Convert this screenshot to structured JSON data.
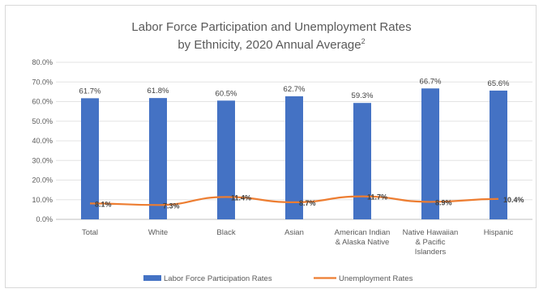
{
  "chart_data": {
    "type": "bar",
    "title_line1": "Labor Force Participation and Unemployment Rates",
    "title_line2": "by Ethnicity, 2020 Annual Average",
    "title_superscript": "2",
    "categories": [
      [
        "Total"
      ],
      [
        "White"
      ],
      [
        "Black"
      ],
      [
        "Asian"
      ],
      [
        "American Indian",
        "& Alaska Native"
      ],
      [
        "Native Hawaiian",
        "& Pacific",
        "Islanders"
      ],
      [
        "Hispanic"
      ]
    ],
    "ylim": [
      0,
      80
    ],
    "y_ticks": [
      "0.0%",
      "10.0%",
      "20.0%",
      "30.0%",
      "40.0%",
      "50.0%",
      "60.0%",
      "70.0%",
      "80.0%"
    ],
    "grid": true,
    "legend_position": "bottom",
    "series": [
      {
        "name": "Labor Force Participation Rates",
        "kind": "bar",
        "color": "#4472c4",
        "values": [
          61.7,
          61.8,
          60.5,
          62.7,
          59.3,
          66.7,
          65.6
        ],
        "labels": [
          "61.7%",
          "61.8%",
          "60.5%",
          "62.7%",
          "59.3%",
          "66.7%",
          "65.6%"
        ]
      },
      {
        "name": "Unemployment Rates",
        "kind": "line",
        "color": "#ed7d31",
        "values": [
          8.1,
          7.3,
          11.4,
          8.7,
          11.7,
          8.9,
          10.4
        ],
        "labels": [
          "8.1%",
          "7.3%",
          "11.4%",
          "8.7%",
          "11.7%",
          "8.9%",
          "10.4%"
        ]
      }
    ]
  }
}
